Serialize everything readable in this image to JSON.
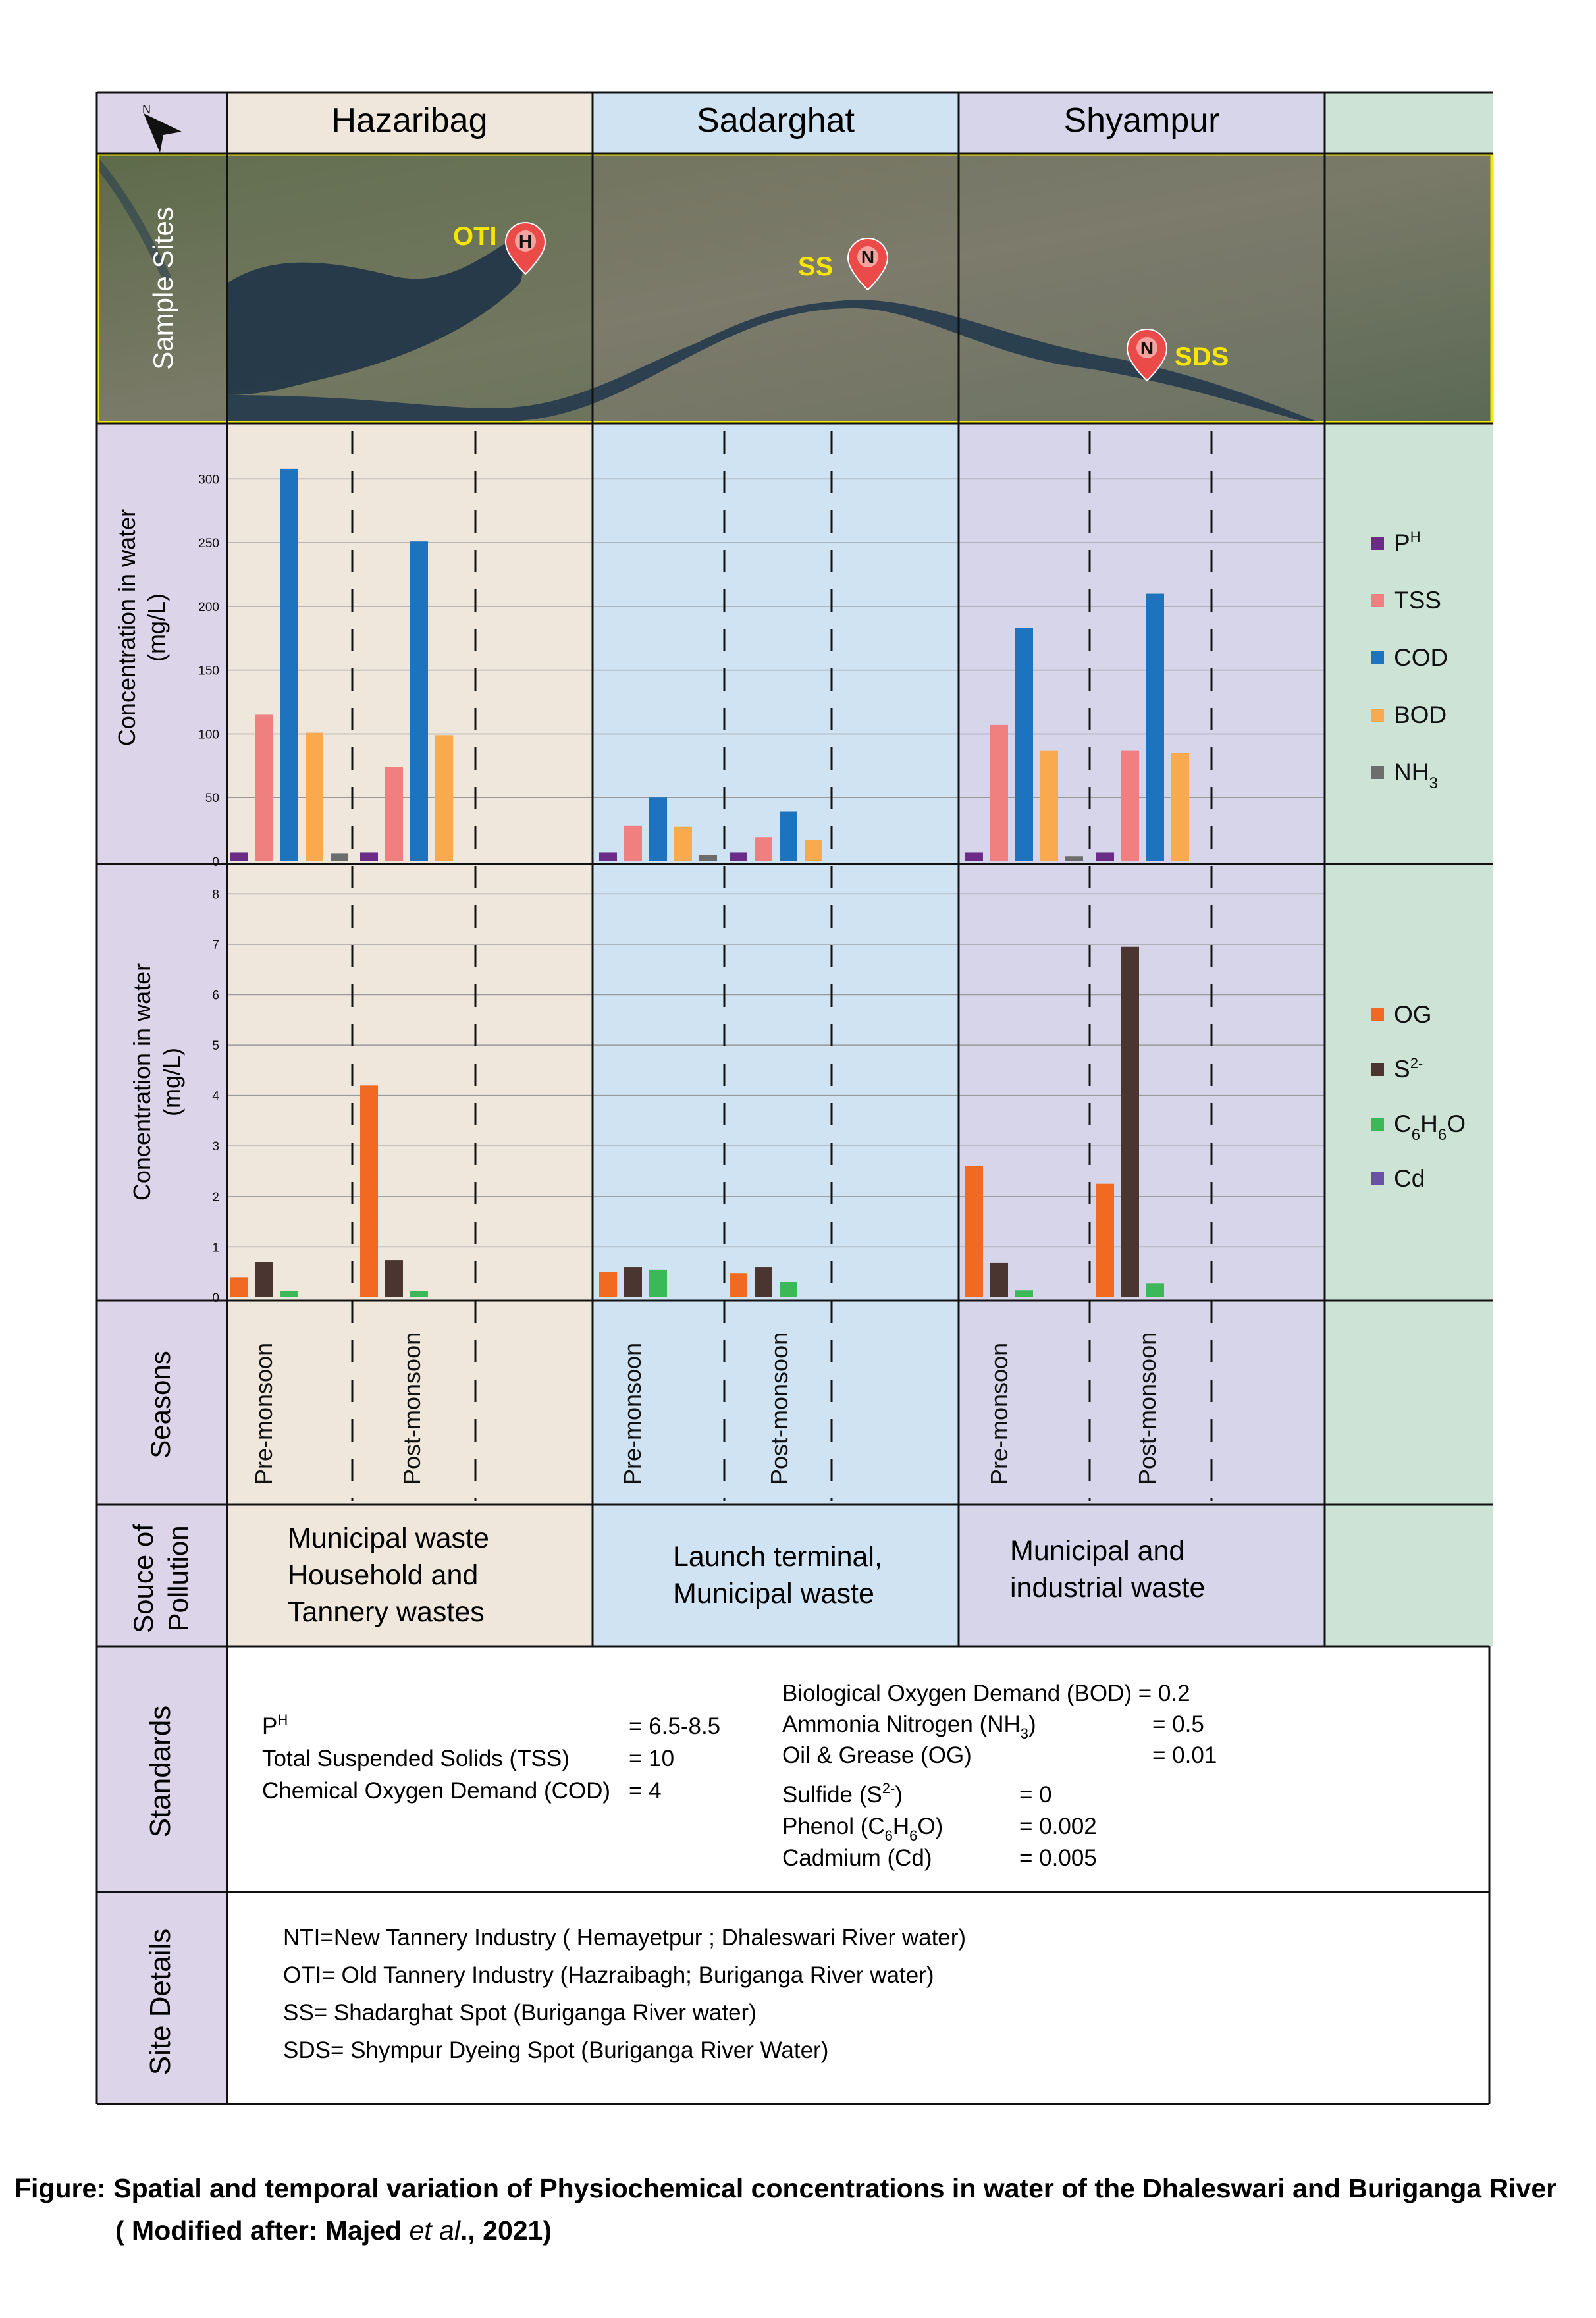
{
  "sites": [
    {
      "name": "Hazaribag",
      "bg": "#efe6dc"
    },
    {
      "name": "Sadarghat",
      "bg": "#cfe3f2"
    },
    {
      "name": "Shyampur",
      "bg": "#d6d5ea"
    }
  ],
  "legend_bg": "#cde3d6",
  "label_bg": "#dcd4e8",
  "row_labels": {
    "sample_sites": "Sample Sites",
    "conc_top": "Concentration in water",
    "conc_bottom": "(mg/L)",
    "seasons": "Seasons",
    "source_line1": "Souce of",
    "source_line2": "Pollution",
    "standards": "Standards",
    "site_details": "Site Details"
  },
  "map_markers": [
    {
      "label": "OTI",
      "pin": "H"
    },
    {
      "label": "SS",
      "pin": "N"
    },
    {
      "label": "SDS",
      "pin": "N"
    }
  ],
  "seasons": [
    "Pre-monsoon",
    "Post-monsoon"
  ],
  "sources": [
    [
      "Municipal waste",
      "Household and",
      "Tannery wastes"
    ],
    [
      "Launch terminal,",
      "Municipal waste"
    ],
    [
      "Municipal and",
      "industrial waste"
    ]
  ],
  "chart_data": [
    {
      "type": "bar",
      "ylabel": "Concentration in water (mg/L)",
      "ylim": [
        0,
        310
      ],
      "yticks": [
        0,
        50,
        100,
        150,
        200,
        250,
        300
      ],
      "categories": [
        "Hazaribag Pre-monsoon",
        "Hazaribag Post-monsoon",
        "Sadarghat Pre-monsoon",
        "Sadarghat Post-monsoon",
        "Shyampur Pre-monsoon",
        "Shyampur Post-monsoon"
      ],
      "series": [
        {
          "name": "PH",
          "color": "#6a2c86",
          "values": [
            7,
            7,
            7,
            7,
            7,
            7
          ]
        },
        {
          "name": "TSS",
          "color": "#f08080",
          "values": [
            115,
            74,
            28,
            19,
            107,
            87
          ]
        },
        {
          "name": "COD",
          "color": "#1e73be",
          "values": [
            308,
            251,
            50,
            39,
            183,
            210
          ]
        },
        {
          "name": "BOD",
          "color": "#f9a94e",
          "values": [
            101,
            99,
            27,
            17,
            87,
            85
          ]
        },
        {
          "name": "NH3",
          "color": "#6d6d6d",
          "values": [
            6,
            0,
            5,
            0,
            4,
            0
          ]
        }
      ],
      "legend": "right"
    },
    {
      "type": "bar",
      "ylabel": "Concentration in water (mg/L)",
      "ylim": [
        0,
        8.2
      ],
      "yticks": [
        0,
        1,
        2,
        3,
        4,
        5,
        6,
        7,
        8
      ],
      "categories": [
        "Hazaribag Pre-monsoon",
        "Hazaribag Post-monsoon",
        "Sadarghat Pre-monsoon",
        "Sadarghat Post-monsoon",
        "Shyampur Pre-monsoon",
        "Shyampur Post-monsoon"
      ],
      "series": [
        {
          "name": "OG",
          "color": "#f26a21",
          "values": [
            0.4,
            4.2,
            0.5,
            0.48,
            2.6,
            2.25
          ]
        },
        {
          "name": "S2-",
          "color": "#4a3530",
          "values": [
            0.7,
            0.73,
            0.6,
            0.6,
            0.68,
            6.95
          ]
        },
        {
          "name": "C6H6O",
          "color": "#3cb858",
          "values": [
            0.12,
            0.12,
            0.55,
            0.3,
            0.14,
            0.27
          ]
        },
        {
          "name": "Cd",
          "color": "#6a52a3",
          "values": [
            0,
            0,
            0,
            0,
            0,
            0
          ]
        }
      ],
      "legend": "right"
    }
  ],
  "standards": {
    "left": [
      {
        "label": "PH",
        "value": "= 6.5-8.5"
      },
      {
        "label": "Total Suspended Solids (TSS)",
        "value": "= 10"
      },
      {
        "label": "Chemical Oxygen Demand (COD)",
        "value": "= 4"
      }
    ],
    "right": [
      {
        "label": "Biological Oxygen Demand (BOD)",
        "value": "= 0.2"
      },
      {
        "label": "Ammonia Nitrogen (NH3)",
        "value": "= 0.5"
      },
      {
        "label": "Oil & Grease (OG)",
        "value": "= 0.01"
      },
      {
        "label": "Sulfide (S2-)",
        "value": "= 0"
      },
      {
        "label": "Phenol (C6H6O)",
        "value": "= 0.002"
      },
      {
        "label": "Cadmium (Cd)",
        "value": "= 0.005"
      }
    ]
  },
  "site_details": [
    "NTI=New Tannery Industry ( Hemayetpur ; Dhaleswari River water)",
    "OTI= Old Tannery Industry (Hazraibagh; Buriganga River  water)",
    "SS= Shadarghat Spot (Buriganga River  water)",
    "SDS= Shympur Dyeing Spot (Buriganga River Water)"
  ],
  "caption": {
    "line1": "Figure: Spatial and temporal variation of Physiochemical concentrations in water of the Dhaleswari and Buriganga River",
    "line2_a": "( Modified after: Majed ",
    "line2_b": "et al",
    "line2_c": "., 2021)"
  }
}
